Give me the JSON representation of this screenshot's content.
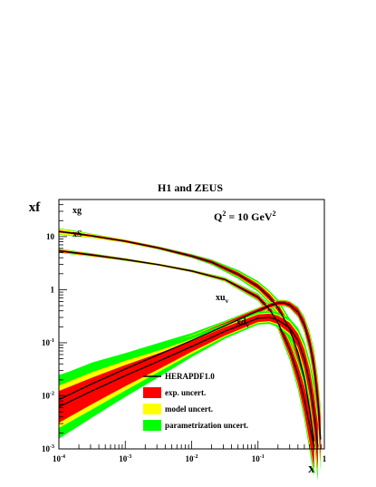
{
  "chart_data": {
    "type": "line",
    "title": "H1 and ZEUS",
    "xlabel": "x",
    "ylabel": "xf",
    "x_scale": "log",
    "y_scale": "log",
    "xlim": [
      0.0001,
      1
    ],
    "ylim": [
      0.001,
      50
    ],
    "x_ticks": [
      {
        "value": 0.0001,
        "base": "10",
        "exp": "-4"
      },
      {
        "value": 0.001,
        "base": "10",
        "exp": "-3"
      },
      {
        "value": 0.01,
        "base": "10",
        "exp": "-2"
      },
      {
        "value": 0.1,
        "base": "10",
        "exp": "-1"
      },
      {
        "value": 1,
        "base": "1",
        "exp": ""
      }
    ],
    "y_ticks": [
      {
        "value": 0.001,
        "base": "10",
        "exp": "-3"
      },
      {
        "value": 0.01,
        "base": "10",
        "exp": "-2"
      },
      {
        "value": 0.1,
        "base": "10",
        "exp": "-1"
      },
      {
        "value": 1,
        "base": "1",
        "exp": ""
      },
      {
        "value": 10,
        "base": "10",
        "exp": ""
      }
    ],
    "annotation": {
      "base": "Q",
      "sup1": "2",
      "mid": " = 10 GeV",
      "sup2": "2"
    },
    "series": [
      {
        "name": "xg",
        "label_base": "xg",
        "label_sub": "",
        "points": [
          [
            0.0001,
            12.5
          ],
          [
            0.00016,
            11.6
          ],
          [
            0.00032,
            10.3
          ],
          [
            0.001,
            8.2
          ],
          [
            0.0032,
            6.1
          ],
          [
            0.01,
            4.3
          ],
          [
            0.02,
            3.3
          ],
          [
            0.05,
            1.95
          ],
          [
            0.1,
            1.15
          ],
          [
            0.15,
            0.72
          ],
          [
            0.2,
            0.46
          ],
          [
            0.3,
            0.18
          ],
          [
            0.4,
            0.065
          ],
          [
            0.5,
            0.021
          ],
          [
            0.6,
            0.0056
          ],
          [
            0.7,
            0.0014
          ]
        ],
        "band_exp": [
          0.02,
          0.02,
          0.02,
          0.02,
          0.02,
          0.025,
          0.03,
          0.04,
          0.05,
          0.06,
          0.07,
          0.1,
          0.14,
          0.2,
          0.28,
          0.35
        ],
        "band_model": [
          0.05,
          0.045,
          0.035,
          0.03,
          0.025,
          0.025,
          0.03,
          0.05,
          0.07,
          0.09,
          0.11,
          0.15,
          0.2,
          0.28,
          0.38,
          0.48
        ],
        "band_param": [
          0.06,
          0.055,
          0.04,
          0.03,
          0.03,
          0.035,
          0.05,
          0.08,
          0.1,
          0.12,
          0.15,
          0.2,
          0.28,
          0.38,
          0.5,
          0.6
        ]
      },
      {
        "name": "xS",
        "label_base": "xS",
        "label_sub": "",
        "points": [
          [
            0.0001,
            5.4
          ],
          [
            0.00032,
            4.5
          ],
          [
            0.001,
            3.7
          ],
          [
            0.0032,
            2.95
          ],
          [
            0.01,
            2.25
          ],
          [
            0.032,
            1.55
          ],
          [
            0.1,
            0.72
          ],
          [
            0.15,
            0.42
          ],
          [
            0.2,
            0.24
          ],
          [
            0.3,
            0.075
          ],
          [
            0.4,
            0.025
          ],
          [
            0.5,
            0.0085
          ],
          [
            0.6,
            0.0028
          ],
          [
            0.7,
            0.0011
          ]
        ],
        "band_exp": [
          0.02,
          0.02,
          0.015,
          0.015,
          0.015,
          0.02,
          0.04,
          0.06,
          0.08,
          0.12,
          0.18,
          0.25,
          0.32,
          0.4
        ],
        "band_model": [
          0.03,
          0.025,
          0.02,
          0.02,
          0.02,
          0.03,
          0.05,
          0.08,
          0.1,
          0.15,
          0.22,
          0.3,
          0.38,
          0.45
        ],
        "band_param": [
          0.04,
          0.03,
          0.025,
          0.02,
          0.025,
          0.04,
          0.07,
          0.1,
          0.13,
          0.2,
          0.28,
          0.38,
          0.48,
          0.55
        ]
      },
      {
        "name": "xu_v",
        "label_base": "xu",
        "label_sub": "v",
        "points": [
          [
            0.0001,
            0.0085
          ],
          [
            0.00032,
            0.017
          ],
          [
            0.001,
            0.032
          ],
          [
            0.0032,
            0.06
          ],
          [
            0.01,
            0.11
          ],
          [
            0.032,
            0.21
          ],
          [
            0.1,
            0.4
          ],
          [
            0.15,
            0.5
          ],
          [
            0.2,
            0.56
          ],
          [
            0.25,
            0.56
          ],
          [
            0.3,
            0.52
          ],
          [
            0.4,
            0.38
          ],
          [
            0.5,
            0.22
          ],
          [
            0.6,
            0.1
          ],
          [
            0.7,
            0.035
          ],
          [
            0.8,
            0.008
          ],
          [
            0.88,
            0.0015
          ]
        ],
        "band_exp": [
          0.22,
          0.2,
          0.15,
          0.12,
          0.08,
          0.06,
          0.04,
          0.04,
          0.04,
          0.04,
          0.05,
          0.07,
          0.1,
          0.14,
          0.2,
          0.3,
          0.4
        ],
        "band_model": [
          0.3,
          0.28,
          0.22,
          0.16,
          0.1,
          0.07,
          0.05,
          0.05,
          0.05,
          0.05,
          0.06,
          0.08,
          0.12,
          0.18,
          0.26,
          0.38,
          0.5
        ],
        "band_param": [
          0.45,
          0.4,
          0.3,
          0.22,
          0.14,
          0.09,
          0.06,
          0.06,
          0.06,
          0.06,
          0.07,
          0.1,
          0.15,
          0.22,
          0.32,
          0.45,
          0.6
        ]
      },
      {
        "name": "xd_v",
        "label_base": "xd",
        "label_sub": "v",
        "points": [
          [
            0.0001,
            0.0062
          ],
          [
            0.00032,
            0.0125
          ],
          [
            0.001,
            0.024
          ],
          [
            0.0032,
            0.045
          ],
          [
            0.01,
            0.085
          ],
          [
            0.032,
            0.165
          ],
          [
            0.1,
            0.29
          ],
          [
            0.15,
            0.3
          ],
          [
            0.2,
            0.27
          ],
          [
            0.3,
            0.19
          ],
          [
            0.4,
            0.11
          ],
          [
            0.5,
            0.05
          ],
          [
            0.6,
            0.018
          ],
          [
            0.7,
            0.0048
          ],
          [
            0.8,
            0.0011
          ]
        ],
        "band_exp": [
          0.3,
          0.25,
          0.2,
          0.15,
          0.1,
          0.08,
          0.07,
          0.07,
          0.08,
          0.1,
          0.13,
          0.18,
          0.25,
          0.33,
          0.42
        ],
        "band_model": [
          0.4,
          0.35,
          0.28,
          0.2,
          0.14,
          0.1,
          0.09,
          0.09,
          0.1,
          0.13,
          0.17,
          0.24,
          0.32,
          0.42,
          0.52
        ],
        "band_param": [
          0.6,
          0.5,
          0.4,
          0.3,
          0.2,
          0.14,
          0.12,
          0.12,
          0.14,
          0.18,
          0.24,
          0.32,
          0.42,
          0.55,
          0.65
        ]
      }
    ],
    "legend": [
      {
        "key": "line",
        "label": "HERAPDF1.0",
        "color": "#000000"
      },
      {
        "key": "exp",
        "label": "exp. uncert.",
        "color": "#ff0000"
      },
      {
        "key": "model",
        "label": "model uncert.",
        "color": "#ffff00"
      },
      {
        "key": "param",
        "label": "parametrization uncert.",
        "color": "#00ff00"
      }
    ],
    "legend_position": "bottom-center",
    "grid": false
  }
}
